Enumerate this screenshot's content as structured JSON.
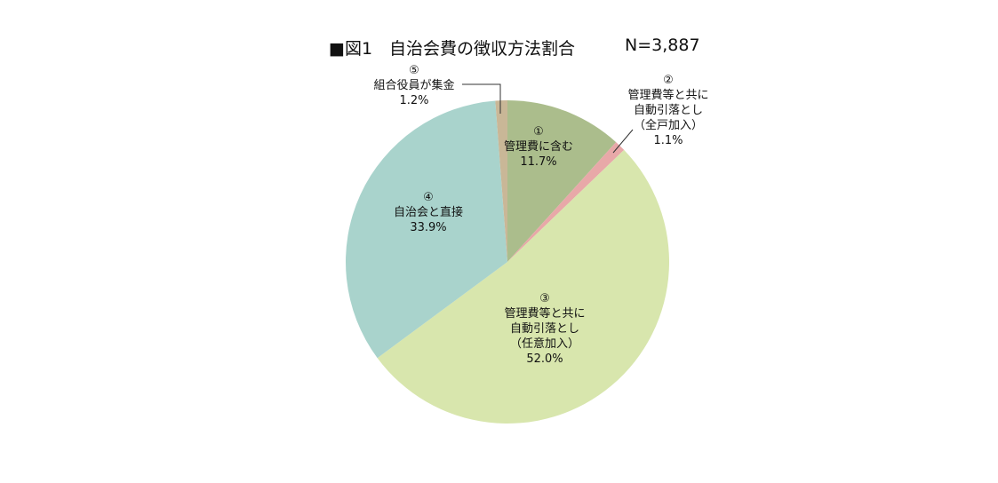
{
  "chart_data": {
    "type": "pie",
    "title": "■図1　自治会費の徴収方法割合",
    "n_label": "N=3,887",
    "start": "12 o'clock, clockwise",
    "slices": [
      {
        "num": "①",
        "lines": [
          "管理費に含む"
        ],
        "value": 11.7,
        "value_label": "11.7%",
        "color": "#abbd8c"
      },
      {
        "num": "②",
        "lines": [
          "管理費等と共に",
          "自動引落とし",
          "（全戸加入）"
        ],
        "value": 1.1,
        "value_label": "1.1%",
        "color": "#e8a8a8"
      },
      {
        "num": "③",
        "lines": [
          "管理費等と共に",
          "自動引落とし",
          "（任意加入）"
        ],
        "value": 52.0,
        "value_label": "52.0%",
        "color": "#d8e6ad"
      },
      {
        "num": "④",
        "lines": [
          "自治会と直接"
        ],
        "value": 33.9,
        "value_label": "33.9%",
        "color": "#a9d3cc"
      },
      {
        "num": "⑤",
        "lines": [
          "組合役員が集金"
        ],
        "value": 1.2,
        "value_label": "1.2%",
        "color": "#c9b797"
      }
    ]
  }
}
